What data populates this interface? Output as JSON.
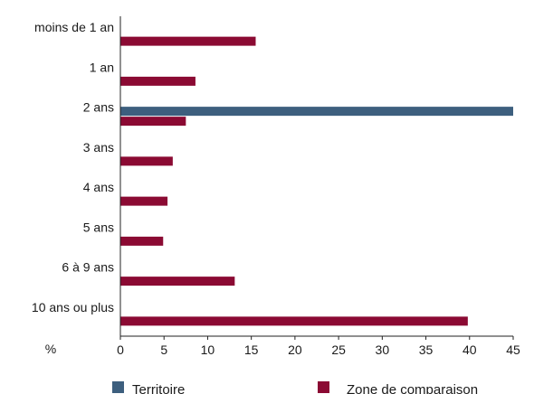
{
  "chart_data": {
    "type": "bar",
    "orientation": "horizontal",
    "categories": [
      "moins de 1 an",
      "1 an",
      "2 ans",
      "3 ans",
      "4 ans",
      "5 ans",
      "6 à 9 ans",
      "10 ans ou plus"
    ],
    "series": [
      {
        "name": "Territoire",
        "color": "#3d5f7e",
        "values": [
          null,
          null,
          45,
          null,
          null,
          null,
          null,
          null
        ]
      },
      {
        "name": "Zone de comparaison",
        "color": "#8b0a33",
        "values": [
          15.5,
          8.6,
          7.5,
          6.0,
          5.4,
          4.9,
          13.1,
          39.8
        ]
      }
    ],
    "xlabel": "%",
    "xlim": [
      0,
      45
    ],
    "xticks": [
      0,
      5,
      10,
      15,
      20,
      25,
      30,
      35,
      40,
      45
    ],
    "grid": false,
    "legend_position": "bottom"
  }
}
